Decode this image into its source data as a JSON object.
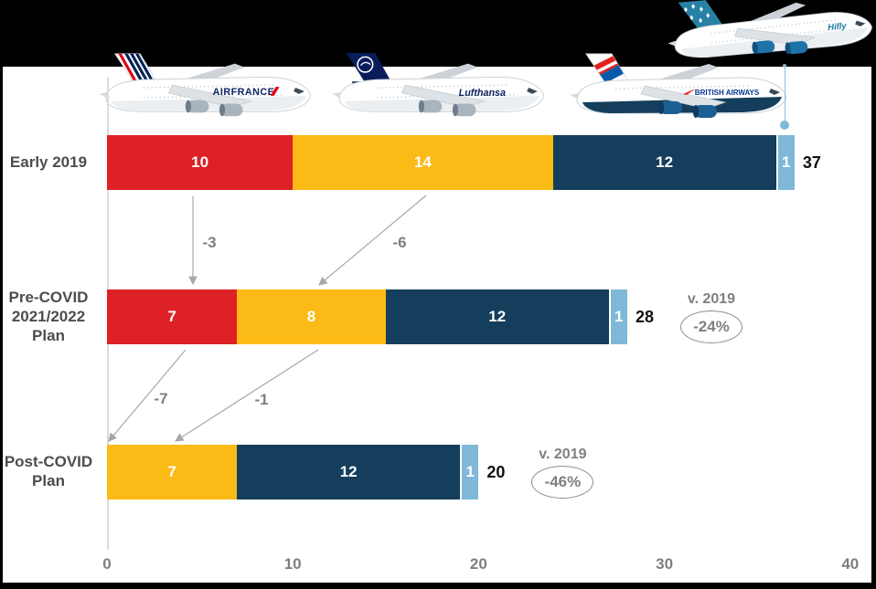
{
  "page": {
    "background": "#000000",
    "card_background": "#FFFFFF"
  },
  "planes": [
    {
      "name": "air-france",
      "label": "AIRFRANCE",
      "brand_color": "#002157",
      "accent_color": "#E1000F"
    },
    {
      "name": "lufthansa",
      "label": "Lufthansa",
      "brand_color": "#0A1D5B",
      "accent_color": "#FBBA16"
    },
    {
      "name": "british-airways",
      "label": "BRITISH AIRWAYS",
      "brand_color": "#073590",
      "accent_color": "#E32119"
    },
    {
      "name": "hi-fly",
      "label": "Hifly",
      "brand_color": "#2781A5",
      "accent_color": "#7FB8D8"
    }
  ],
  "chart_data": {
    "type": "bar",
    "orientation": "horizontal",
    "stacked": true,
    "title": "",
    "categories": [
      "Early 2019",
      "Pre-COVID 2021/2022 Plan",
      "Post-COVID Plan"
    ],
    "category_label_lines": [
      [
        "Early 2019"
      ],
      [
        "Pre-COVID",
        "2021/2022",
        "Plan"
      ],
      [
        "Post-COVID",
        "Plan"
      ]
    ],
    "series": [
      {
        "name": "Air France",
        "color": "#DD2126",
        "values": [
          10,
          7,
          0
        ]
      },
      {
        "name": "Lufthansa",
        "color": "#FBBA16",
        "values": [
          14,
          8,
          7
        ]
      },
      {
        "name": "British Airways",
        "color": "#143E5C",
        "values": [
          12,
          12,
          12
        ]
      },
      {
        "name": "Hi Fly",
        "color": "#7FB8D8",
        "values": [
          1,
          1,
          1
        ]
      }
    ],
    "totals": [
      37,
      28,
      20
    ],
    "vs_2019": [
      null,
      {
        "title": "v. 2019",
        "value": "-24%"
      },
      {
        "title": "v. 2019",
        "value": "-46%"
      }
    ],
    "deltas": [
      {
        "label": "-3"
      },
      {
        "label": "-6"
      },
      {
        "label": "-7"
      },
      {
        "label": "-1"
      }
    ],
    "xlim": [
      0,
      40
    ],
    "x_ticks": [
      "0",
      "10",
      "20",
      "30",
      "40"
    ],
    "grid": false,
    "legend": "none"
  },
  "colors": {
    "air_france_red": "#DD2126",
    "lufthansa_yellow": "#FBBA16",
    "british_airways_navy": "#143E5C",
    "hifly_light_blue": "#7FB8D8",
    "arrow_gray": "#A8A8A8",
    "category_label_gray": "#4D4D4D",
    "tick_gray": "#7F7F7F",
    "annotation_gray": "#7F7F7F"
  }
}
